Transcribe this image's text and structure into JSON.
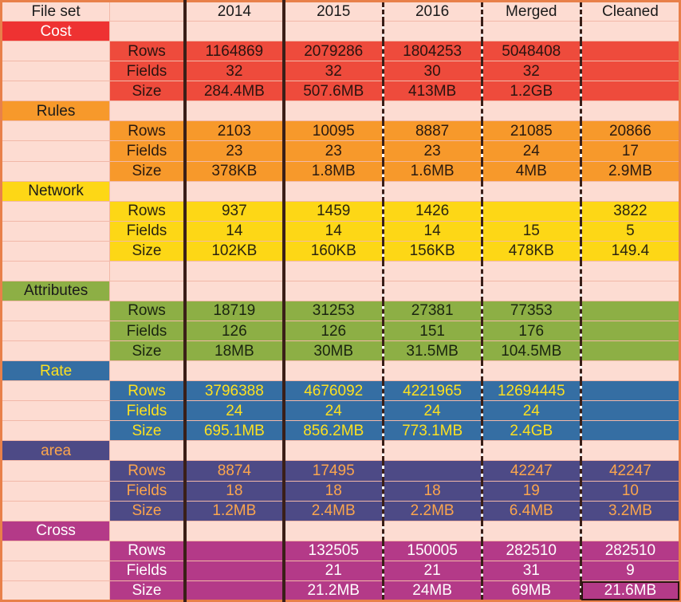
{
  "header": [
    "File set",
    "",
    "2014",
    "2015",
    "2016",
    "Merged",
    "Cleaned"
  ],
  "groups": [
    {
      "name": "Cost",
      "cls": "cost",
      "hcls": "costH",
      "rows": [
        {
          "label": "Rows",
          "values": [
            "1164869",
            "2079286",
            "1804253",
            "5048408",
            ""
          ]
        },
        {
          "label": "Fields",
          "values": [
            "32",
            "32",
            "30",
            "32",
            ""
          ]
        },
        {
          "label": "Size",
          "values": [
            "284.4MB",
            "507.6MB",
            "413MB",
            "1.2GB",
            ""
          ]
        }
      ]
    },
    {
      "name": "Rules",
      "cls": "rules",
      "hcls": "rulesH",
      "rows": [
        {
          "label": "Rows",
          "values": [
            "2103",
            "10095",
            "8887",
            "21085",
            "20866"
          ]
        },
        {
          "label": "Fields",
          "values": [
            "23",
            "23",
            "23",
            "24",
            "17"
          ]
        },
        {
          "label": "Size",
          "values": [
            "378KB",
            "1.8MB",
            "1.6MB",
            "4MB",
            "2.9MB"
          ]
        }
      ]
    },
    {
      "name": "Network",
      "cls": "net",
      "hcls": "netH",
      "rows": [
        {
          "label": "Rows",
          "values": [
            "937",
            "1459",
            "1426",
            "",
            "3822"
          ]
        },
        {
          "label": "Fields",
          "values": [
            "14",
            "14",
            "14",
            "15",
            "5"
          ]
        },
        {
          "label": "Size",
          "values": [
            "102KB",
            "160KB",
            "156KB",
            "478KB",
            "149.4"
          ]
        }
      ],
      "extra_blank": true
    },
    {
      "name": "Attributes",
      "cls": "attr",
      "hcls": "attrH",
      "rows": [
        {
          "label": "Rows",
          "values": [
            "18719",
            "31253",
            "27381",
            "77353",
            ""
          ]
        },
        {
          "label": "Fields",
          "values": [
            "126",
            "126",
            "151",
            "176",
            ""
          ]
        },
        {
          "label": "Size",
          "values": [
            "18MB",
            "30MB",
            "31.5MB",
            "104.5MB",
            ""
          ]
        }
      ]
    },
    {
      "name": "Rate",
      "cls": "rate",
      "hcls": "rateH",
      "rows": [
        {
          "label": "Rows",
          "values": [
            "3796388",
            "4676092",
            "4221965",
            "12694445",
            ""
          ]
        },
        {
          "label": "Fields",
          "values": [
            "24",
            "24",
            "24",
            "24",
            ""
          ]
        },
        {
          "label": "Size",
          "values": [
            "695.1MB",
            "856.2MB",
            "773.1MB",
            "2.4GB",
            ""
          ]
        }
      ]
    },
    {
      "name": "area",
      "cls": "area",
      "hcls": "areaH",
      "rows": [
        {
          "label": "Rows",
          "values": [
            "8874",
            "17495",
            "",
            "42247",
            "42247"
          ]
        },
        {
          "label": "Fields",
          "values": [
            "18",
            "18",
            "18",
            "19",
            "10"
          ]
        },
        {
          "label": "Size",
          "values": [
            "1.2MB",
            "2.4MB",
            "2.2MB",
            "6.4MB",
            "3.2MB"
          ]
        }
      ]
    },
    {
      "name": "Cross",
      "cls": "cross",
      "hcls": "crossH",
      "rows": [
        {
          "label": "Rows",
          "values": [
            "",
            "132505",
            "150005",
            "282510",
            "282510"
          ]
        },
        {
          "label": "Fields",
          "values": [
            "",
            "21",
            "21",
            "31",
            "9"
          ]
        },
        {
          "label": "Size",
          "values": [
            "",
            "21.2MB",
            "24MB",
            "69MB",
            "21.6MB"
          ]
        }
      ]
    }
  ]
}
